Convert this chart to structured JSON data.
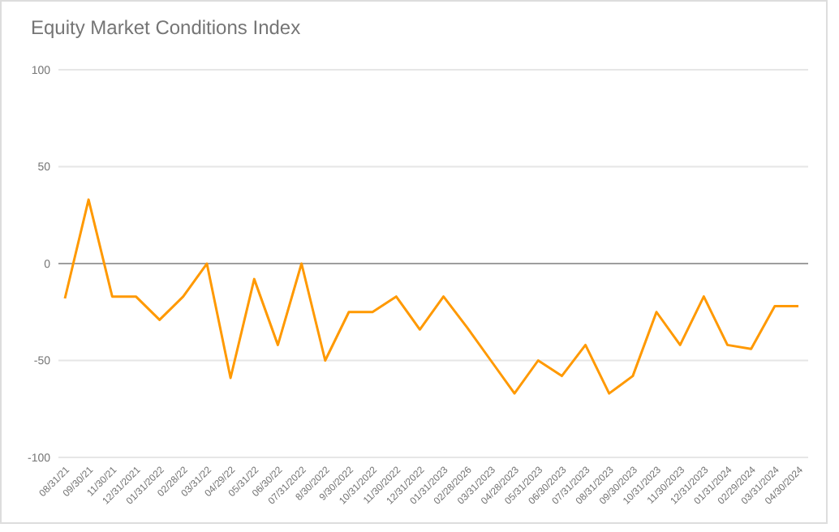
{
  "chart_data": {
    "type": "line",
    "title": "Equity Market Conditions Index",
    "categories": [
      "08/31/21",
      "09/30/21",
      "11/30/21",
      "12/31/2021",
      "01/31/2022",
      "02/28/22",
      "03/31/22",
      "04/29/22",
      "05/31/22",
      "06/30/22",
      "07/31/2022",
      "8/30/2022",
      "9/30/2022",
      "10/31/2022",
      "11/30/2022",
      "12/31/2022",
      "01/31/2023",
      "02/28/2026",
      "03/31/2023",
      "04/28/2023",
      "05/31/2023",
      "06/30/2023",
      "07/31/2023",
      "08/31/2023",
      "09/30/2023",
      "10/31/2023",
      "11/30/2023",
      "12/31/2023",
      "01/31/2024",
      "02/29/2024",
      "03/31/2024",
      "04/30/2024"
    ],
    "series": [
      {
        "color": "#ff9900",
        "values": [
          -18,
          33,
          -17,
          -17,
          -29,
          -17,
          0,
          -59,
          -8,
          -42,
          0,
          -50,
          -25,
          -25,
          -17,
          -34,
          -17,
          -33,
          -50,
          -67,
          -50,
          -58,
          -42,
          -67,
          -58,
          -25,
          -42,
          -17,
          -42,
          -44,
          -22,
          -22
        ]
      }
    ],
    "ylim": [
      -100,
      100
    ],
    "yticks": [
      -100,
      -50,
      0,
      50,
      100
    ],
    "grid": true,
    "marker": "none"
  }
}
